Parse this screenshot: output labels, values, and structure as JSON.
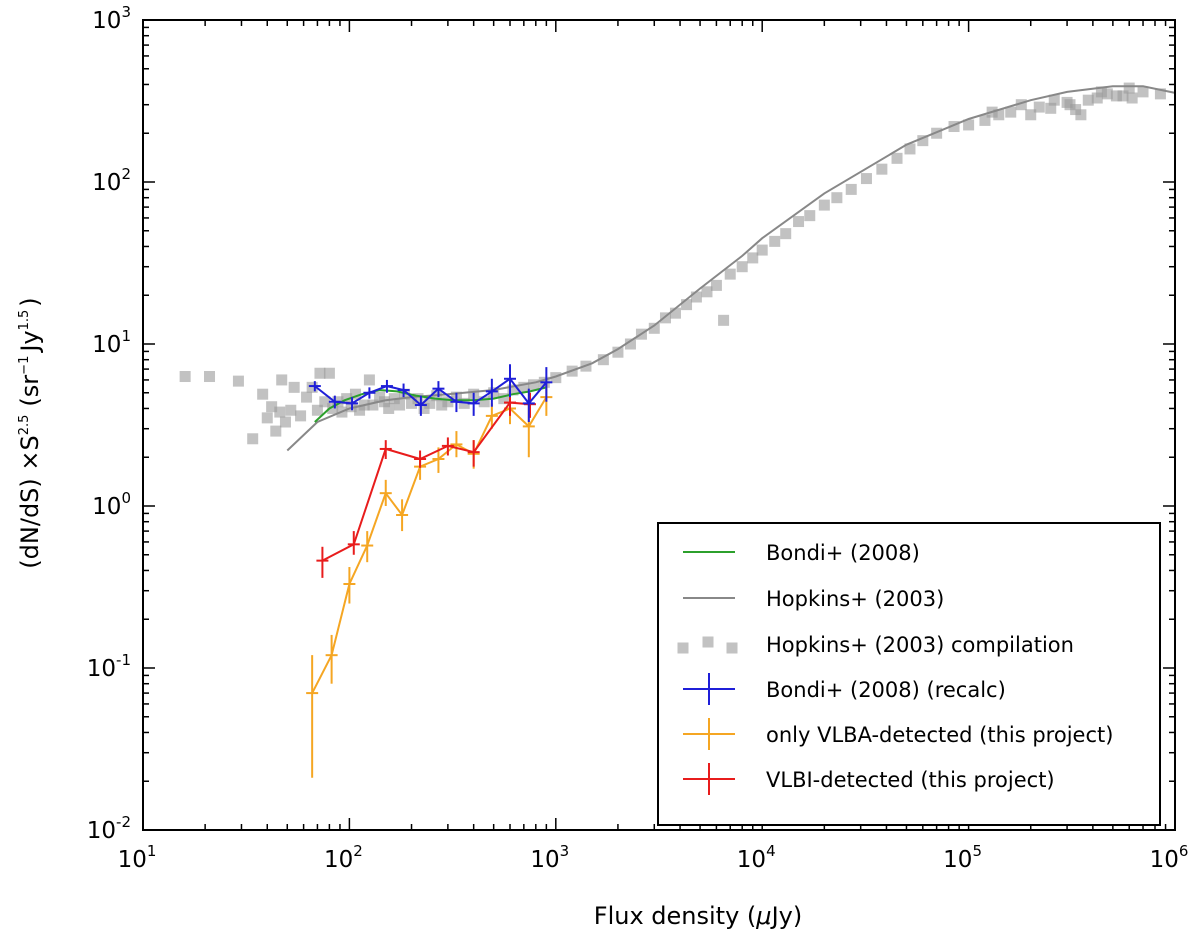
{
  "chart_data": {
    "type": "scatter",
    "title": "",
    "xlabel": "Flux density (μJy)",
    "ylabel": "(dN/dS) ×S^2.5 (sr^-1 Jy^1.5)",
    "ylabel_parts": {
      "a": "(dN/dS) ×S",
      "a_sup": "2.5",
      "b": "(sr",
      "b_sup": "−1",
      "c": "Jy",
      "c_sup": "1.5",
      "d": ")"
    },
    "xlabel_parts": {
      "a": "Flux density (",
      "mu": "μ",
      "b": "Jy)"
    },
    "xscale": "log",
    "yscale": "log",
    "xlim": [
      10,
      1000000
    ],
    "ylim": [
      0.01,
      1000
    ],
    "x_ticks": [
      {
        "base": "10",
        "exp": "1"
      },
      {
        "base": "10",
        "exp": "2"
      },
      {
        "base": "10",
        "exp": "3"
      },
      {
        "base": "10",
        "exp": "4"
      },
      {
        "base": "10",
        "exp": "5"
      },
      {
        "base": "10",
        "exp": "6"
      }
    ],
    "y_ticks": [
      {
        "base": "10",
        "exp": "-2"
      },
      {
        "base": "10",
        "exp": "-1"
      },
      {
        "base": "10",
        "exp": "0"
      },
      {
        "base": "10",
        "exp": "1"
      },
      {
        "base": "10",
        "exp": "2"
      },
      {
        "base": "10",
        "exp": "3"
      }
    ],
    "legend_position": "lower-right",
    "colors": {
      "bondi": "#2ca02c",
      "hopkins": "#888888",
      "compilation": "#9a9a9a",
      "recalc": "#1f1fd8",
      "vlba": "#f5a623",
      "vlbi": "#e81c1c"
    },
    "series": [
      {
        "name": "Bondi+ (2008)",
        "kind": "line",
        "color_key": "bondi",
        "x": [
          68,
          80,
          95,
          115,
          140,
          170,
          210,
          260,
          320,
          400,
          500,
          620,
          750,
          900
        ],
        "y": [
          3.3,
          4.0,
          4.5,
          4.9,
          5.2,
          5.1,
          4.8,
          4.6,
          4.5,
          4.5,
          4.6,
          4.9,
          5.1,
          5.4
        ]
      },
      {
        "name": "Hopkins+ (2003)",
        "kind": "line",
        "color_key": "hopkins",
        "x": [
          50,
          70,
          100,
          150,
          200,
          300,
          500,
          800,
          1000,
          1500,
          2000,
          3000,
          5000,
          8000,
          10000,
          20000,
          50000,
          100000,
          200000,
          300000,
          500000,
          700000,
          1000000
        ],
        "y": [
          2.2,
          3.3,
          4.0,
          4.5,
          4.7,
          4.9,
          5.2,
          5.8,
          6.3,
          7.6,
          9.3,
          13,
          22,
          35,
          45,
          85,
          170,
          245,
          320,
          360,
          390,
          390,
          355
        ]
      },
      {
        "name": "Hopkins+ (2003) compilation",
        "kind": "scatter",
        "color_key": "compilation",
        "points": [
          [
            16,
            6.3
          ],
          [
            21,
            6.3
          ],
          [
            29,
            5.9
          ],
          [
            34,
            2.6
          ],
          [
            38,
            4.9
          ],
          [
            40,
            3.5
          ],
          [
            42,
            4.1
          ],
          [
            44,
            2.9
          ],
          [
            46,
            3.8
          ],
          [
            47,
            6.0
          ],
          [
            49,
            3.3
          ],
          [
            52,
            3.9
          ],
          [
            54,
            5.4
          ],
          [
            58,
            3.6
          ],
          [
            62,
            4.7
          ],
          [
            66,
            5.4
          ],
          [
            70,
            3.9
          ],
          [
            72,
            6.6
          ],
          [
            76,
            4.4
          ],
          [
            80,
            6.6
          ],
          [
            83,
            4.0
          ],
          [
            88,
            4.4
          ],
          [
            92,
            3.8
          ],
          [
            97,
            4.6
          ],
          [
            102,
            4.1
          ],
          [
            107,
            4.9
          ],
          [
            112,
            3.9
          ],
          [
            118,
            4.2
          ],
          [
            125,
            6.0
          ],
          [
            130,
            4.2
          ],
          [
            140,
            4.7
          ],
          [
            148,
            4.4
          ],
          [
            155,
            4.0
          ],
          [
            165,
            4.6
          ],
          [
            175,
            4.2
          ],
          [
            185,
            4.9
          ],
          [
            200,
            4.3
          ],
          [
            215,
            4.6
          ],
          [
            230,
            4.0
          ],
          [
            245,
            4.3
          ],
          [
            265,
            4.8
          ],
          [
            280,
            4.2
          ],
          [
            300,
            4.4
          ],
          [
            330,
            4.7
          ],
          [
            360,
            4.3
          ],
          [
            400,
            4.9
          ],
          [
            450,
            4.4
          ],
          [
            500,
            5.0
          ],
          [
            560,
            4.6
          ],
          [
            620,
            5.2
          ],
          [
            700,
            5.4
          ],
          [
            780,
            5.6
          ],
          [
            880,
            5.8
          ],
          [
            1000,
            6.2
          ],
          [
            1200,
            6.8
          ],
          [
            1400,
            7.3
          ],
          [
            1700,
            8.0
          ],
          [
            2000,
            8.9
          ],
          [
            2300,
            10.0
          ],
          [
            2600,
            11.5
          ],
          [
            3000,
            12.5
          ],
          [
            3400,
            14.5
          ],
          [
            3800,
            15.5
          ],
          [
            4300,
            17.5
          ],
          [
            4800,
            19.5
          ],
          [
            5400,
            21.0
          ],
          [
            6000,
            23.0
          ],
          [
            6500,
            14.0
          ],
          [
            7000,
            27.0
          ],
          [
            8000,
            30.0
          ],
          [
            9000,
            34.0
          ],
          [
            10000,
            38.0
          ],
          [
            11500,
            43.0
          ],
          [
            13000,
            48.0
          ],
          [
            15000,
            57.0
          ],
          [
            17000,
            62.0
          ],
          [
            20000,
            72.0
          ],
          [
            23000,
            80.0
          ],
          [
            27000,
            90.0
          ],
          [
            32000,
            105.0
          ],
          [
            38000,
            120.0
          ],
          [
            45000,
            140.0
          ],
          [
            52000,
            160.0
          ],
          [
            60000,
            180.0
          ],
          [
            70000,
            200.0
          ],
          [
            85000,
            220.0
          ],
          [
            100000,
            225.0
          ],
          [
            120000,
            240.0
          ],
          [
            140000,
            260.0
          ],
          [
            160000,
            270.0
          ],
          [
            180000,
            300.0
          ],
          [
            220000,
            290.0
          ],
          [
            260000,
            320.0
          ],
          [
            300000,
            310.0
          ],
          [
            330000,
            280.0
          ],
          [
            380000,
            320.0
          ],
          [
            420000,
            330.0
          ],
          [
            470000,
            350.0
          ],
          [
            520000,
            340.0
          ],
          [
            560000,
            340.0
          ],
          [
            620000,
            330.0
          ],
          [
            700000,
            360.0
          ],
          [
            850000,
            350.0
          ],
          [
            130000,
            270.0
          ],
          [
            200000,
            260.0
          ],
          [
            250000,
            285.0
          ],
          [
            310000,
            300.0
          ],
          [
            440000,
            360.0
          ],
          [
            600000,
            380.0
          ],
          [
            350000,
            260.0
          ]
        ]
      },
      {
        "name": "Bondi+ (2008) (recalc)",
        "kind": "errorbar",
        "color_key": "recalc",
        "x": [
          68,
          85,
          103,
          125,
          152,
          183,
          222,
          270,
          330,
          400,
          490,
          600,
          740,
          900
        ],
        "y": [
          5.5,
          4.4,
          4.3,
          5.0,
          5.5,
          5.2,
          4.2,
          5.3,
          4.4,
          4.3,
          5.1,
          6.1,
          4.3,
          5.8
        ],
        "ylo": [
          5.1,
          4.0,
          3.9,
          4.6,
          5.0,
          4.7,
          3.6,
          4.7,
          3.8,
          3.6,
          4.1,
          4.7,
          3.3,
          4.4
        ],
        "yhi": [
          5.9,
          4.8,
          4.7,
          5.4,
          6.0,
          5.7,
          4.8,
          5.9,
          5.0,
          5.0,
          6.1,
          7.5,
          5.3,
          7.2
        ]
      },
      {
        "name": "only VLBA-detected (this project)",
        "kind": "errorbar",
        "color_key": "vlba",
        "x": [
          66,
          82,
          100,
          122,
          150,
          180,
          220,
          270,
          330,
          400,
          490,
          600,
          740,
          900
        ],
        "y": [
          0.07,
          0.12,
          0.33,
          0.57,
          1.2,
          0.88,
          1.75,
          1.95,
          2.4,
          2.1,
          3.6,
          4.0,
          3.1,
          4.7
        ],
        "ylo": [
          0.021,
          0.08,
          0.25,
          0.45,
          1.0,
          0.7,
          1.45,
          1.6,
          2.0,
          1.7,
          3.0,
          3.2,
          2.0,
          3.6
        ],
        "yhi": [
          0.12,
          0.16,
          0.42,
          0.7,
          1.45,
          1.1,
          2.05,
          2.3,
          2.9,
          2.55,
          4.3,
          5.0,
          4.6,
          5.8
        ]
      },
      {
        "name": "VLBI-detected (this project)",
        "kind": "errorbar",
        "color_key": "vlbi",
        "x": [
          74,
          105,
          150,
          220,
          300,
          400,
          600,
          750
        ],
        "y": [
          0.46,
          0.58,
          2.25,
          1.95,
          2.35,
          2.15,
          4.35,
          4.25
        ],
        "ylo": [
          0.36,
          0.5,
          1.95,
          1.72,
          2.05,
          1.75,
          3.6,
          3.5
        ],
        "yhi": [
          0.56,
          0.7,
          2.55,
          2.2,
          2.65,
          2.55,
          5.1,
          5.0
        ]
      }
    ]
  }
}
